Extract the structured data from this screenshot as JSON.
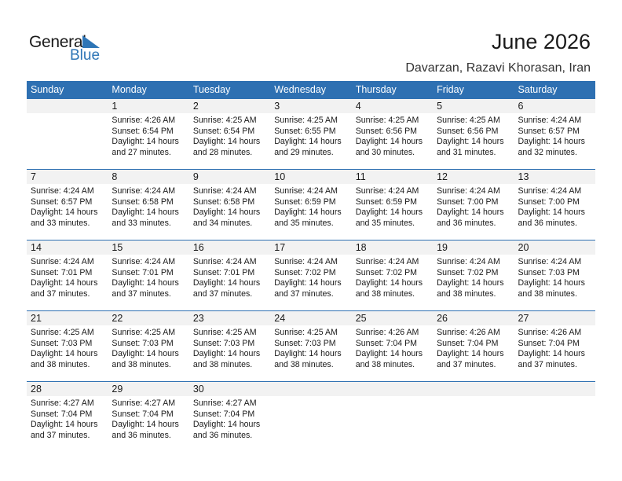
{
  "logo": {
    "general": "General",
    "blue": "Blue",
    "brand_color": "#2e75b6"
  },
  "title": "June 2026",
  "location": "Davarzan, Razavi Khorasan, Iran",
  "header_color": "#2e70b2",
  "weekdays": [
    "Sunday",
    "Monday",
    "Tuesday",
    "Wednesday",
    "Thursday",
    "Friday",
    "Saturday"
  ],
  "weeks": [
    [
      null,
      {
        "day": "1",
        "sunrise": "Sunrise: 4:26 AM",
        "sunset": "Sunset: 6:54 PM",
        "daylight1": "Daylight: 14 hours",
        "daylight2": "and 27 minutes."
      },
      {
        "day": "2",
        "sunrise": "Sunrise: 4:25 AM",
        "sunset": "Sunset: 6:54 PM",
        "daylight1": "Daylight: 14 hours",
        "daylight2": "and 28 minutes."
      },
      {
        "day": "3",
        "sunrise": "Sunrise: 4:25 AM",
        "sunset": "Sunset: 6:55 PM",
        "daylight1": "Daylight: 14 hours",
        "daylight2": "and 29 minutes."
      },
      {
        "day": "4",
        "sunrise": "Sunrise: 4:25 AM",
        "sunset": "Sunset: 6:56 PM",
        "daylight1": "Daylight: 14 hours",
        "daylight2": "and 30 minutes."
      },
      {
        "day": "5",
        "sunrise": "Sunrise: 4:25 AM",
        "sunset": "Sunset: 6:56 PM",
        "daylight1": "Daylight: 14 hours",
        "daylight2": "and 31 minutes."
      },
      {
        "day": "6",
        "sunrise": "Sunrise: 4:24 AM",
        "sunset": "Sunset: 6:57 PM",
        "daylight1": "Daylight: 14 hours",
        "daylight2": "and 32 minutes."
      }
    ],
    [
      {
        "day": "7",
        "sunrise": "Sunrise: 4:24 AM",
        "sunset": "Sunset: 6:57 PM",
        "daylight1": "Daylight: 14 hours",
        "daylight2": "and 33 minutes."
      },
      {
        "day": "8",
        "sunrise": "Sunrise: 4:24 AM",
        "sunset": "Sunset: 6:58 PM",
        "daylight1": "Daylight: 14 hours",
        "daylight2": "and 33 minutes."
      },
      {
        "day": "9",
        "sunrise": "Sunrise: 4:24 AM",
        "sunset": "Sunset: 6:58 PM",
        "daylight1": "Daylight: 14 hours",
        "daylight2": "and 34 minutes."
      },
      {
        "day": "10",
        "sunrise": "Sunrise: 4:24 AM",
        "sunset": "Sunset: 6:59 PM",
        "daylight1": "Daylight: 14 hours",
        "daylight2": "and 35 minutes."
      },
      {
        "day": "11",
        "sunrise": "Sunrise: 4:24 AM",
        "sunset": "Sunset: 6:59 PM",
        "daylight1": "Daylight: 14 hours",
        "daylight2": "and 35 minutes."
      },
      {
        "day": "12",
        "sunrise": "Sunrise: 4:24 AM",
        "sunset": "Sunset: 7:00 PM",
        "daylight1": "Daylight: 14 hours",
        "daylight2": "and 36 minutes."
      },
      {
        "day": "13",
        "sunrise": "Sunrise: 4:24 AM",
        "sunset": "Sunset: 7:00 PM",
        "daylight1": "Daylight: 14 hours",
        "daylight2": "and 36 minutes."
      }
    ],
    [
      {
        "day": "14",
        "sunrise": "Sunrise: 4:24 AM",
        "sunset": "Sunset: 7:01 PM",
        "daylight1": "Daylight: 14 hours",
        "daylight2": "and 37 minutes."
      },
      {
        "day": "15",
        "sunrise": "Sunrise: 4:24 AM",
        "sunset": "Sunset: 7:01 PM",
        "daylight1": "Daylight: 14 hours",
        "daylight2": "and 37 minutes."
      },
      {
        "day": "16",
        "sunrise": "Sunrise: 4:24 AM",
        "sunset": "Sunset: 7:01 PM",
        "daylight1": "Daylight: 14 hours",
        "daylight2": "and 37 minutes."
      },
      {
        "day": "17",
        "sunrise": "Sunrise: 4:24 AM",
        "sunset": "Sunset: 7:02 PM",
        "daylight1": "Daylight: 14 hours",
        "daylight2": "and 37 minutes."
      },
      {
        "day": "18",
        "sunrise": "Sunrise: 4:24 AM",
        "sunset": "Sunset: 7:02 PM",
        "daylight1": "Daylight: 14 hours",
        "daylight2": "and 38 minutes."
      },
      {
        "day": "19",
        "sunrise": "Sunrise: 4:24 AM",
        "sunset": "Sunset: 7:02 PM",
        "daylight1": "Daylight: 14 hours",
        "daylight2": "and 38 minutes."
      },
      {
        "day": "20",
        "sunrise": "Sunrise: 4:24 AM",
        "sunset": "Sunset: 7:03 PM",
        "daylight1": "Daylight: 14 hours",
        "daylight2": "and 38 minutes."
      }
    ],
    [
      {
        "day": "21",
        "sunrise": "Sunrise: 4:25 AM",
        "sunset": "Sunset: 7:03 PM",
        "daylight1": "Daylight: 14 hours",
        "daylight2": "and 38 minutes."
      },
      {
        "day": "22",
        "sunrise": "Sunrise: 4:25 AM",
        "sunset": "Sunset: 7:03 PM",
        "daylight1": "Daylight: 14 hours",
        "daylight2": "and 38 minutes."
      },
      {
        "day": "23",
        "sunrise": "Sunrise: 4:25 AM",
        "sunset": "Sunset: 7:03 PM",
        "daylight1": "Daylight: 14 hours",
        "daylight2": "and 38 minutes."
      },
      {
        "day": "24",
        "sunrise": "Sunrise: 4:25 AM",
        "sunset": "Sunset: 7:03 PM",
        "daylight1": "Daylight: 14 hours",
        "daylight2": "and 38 minutes."
      },
      {
        "day": "25",
        "sunrise": "Sunrise: 4:26 AM",
        "sunset": "Sunset: 7:04 PM",
        "daylight1": "Daylight: 14 hours",
        "daylight2": "and 38 minutes."
      },
      {
        "day": "26",
        "sunrise": "Sunrise: 4:26 AM",
        "sunset": "Sunset: 7:04 PM",
        "daylight1": "Daylight: 14 hours",
        "daylight2": "and 37 minutes."
      },
      {
        "day": "27",
        "sunrise": "Sunrise: 4:26 AM",
        "sunset": "Sunset: 7:04 PM",
        "daylight1": "Daylight: 14 hours",
        "daylight2": "and 37 minutes."
      }
    ],
    [
      {
        "day": "28",
        "sunrise": "Sunrise: 4:27 AM",
        "sunset": "Sunset: 7:04 PM",
        "daylight1": "Daylight: 14 hours",
        "daylight2": "and 37 minutes."
      },
      {
        "day": "29",
        "sunrise": "Sunrise: 4:27 AM",
        "sunset": "Sunset: 7:04 PM",
        "daylight1": "Daylight: 14 hours",
        "daylight2": "and 36 minutes."
      },
      {
        "day": "30",
        "sunrise": "Sunrise: 4:27 AM",
        "sunset": "Sunset: 7:04 PM",
        "daylight1": "Daylight: 14 hours",
        "daylight2": "and 36 minutes."
      },
      null,
      null,
      null,
      null
    ]
  ]
}
